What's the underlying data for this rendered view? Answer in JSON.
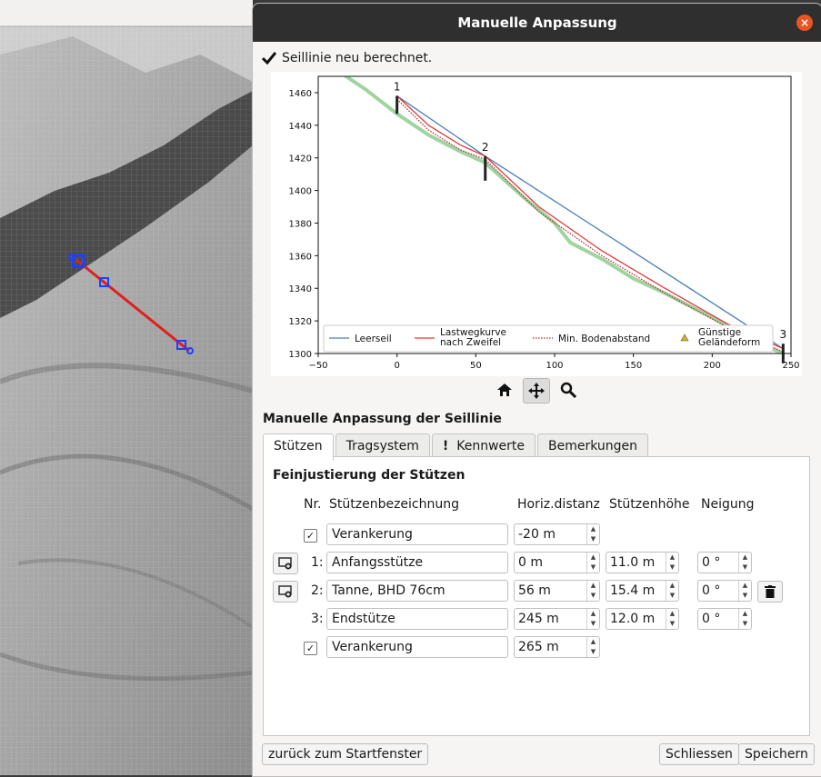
{
  "window": {
    "title": "Manuelle Anpassung",
    "close_label": "×"
  },
  "status": {
    "icon": "check-icon",
    "text": "Seillinie neu berechnet."
  },
  "chart_data": {
    "type": "line",
    "title": "",
    "xlabel": "",
    "ylabel": "",
    "xlim": [
      -50,
      250
    ],
    "ylim": [
      1300,
      1470
    ],
    "xticks": [
      -50,
      0,
      50,
      100,
      150,
      200,
      250
    ],
    "yticks": [
      1300,
      1320,
      1340,
      1360,
      1380,
      1400,
      1420,
      1440,
      1460
    ],
    "series": [
      {
        "name": "Leerseil",
        "color": "#4a7fb5",
        "x": [
          0,
          56,
          245
        ],
        "y": [
          1458,
          1421,
          1303
        ]
      },
      {
        "name": "Lastwegkurve nach Zweifel",
        "color": "#e03b3b",
        "x": [
          0,
          20,
          40,
          56,
          90,
          130,
          170,
          210,
          245
        ],
        "y": [
          1458,
          1440,
          1428,
          1421,
          1390,
          1363,
          1340,
          1318,
          1303
        ]
      },
      {
        "name": "Min. Bodenabstand",
        "color": "#b03030",
        "x": [
          0,
          20,
          40,
          56,
          90,
          130,
          170,
          210,
          245
        ],
        "y": [
          1456,
          1437,
          1425,
          1419,
          1387,
          1360,
          1337,
          1316,
          1301
        ]
      },
      {
        "name": "Terrain",
        "color": "#9fd39f",
        "x": [
          -40,
          -20,
          0,
          20,
          40,
          56,
          80,
          100,
          110,
          130,
          150,
          170,
          200,
          230,
          245
        ],
        "y": [
          1475,
          1462,
          1447,
          1434,
          1424,
          1417,
          1396,
          1380,
          1368,
          1358,
          1346,
          1337,
          1322,
          1306,
          1300
        ]
      }
    ],
    "supports": [
      {
        "label": "1",
        "x": 0,
        "top": 1458,
        "bottom": 1447
      },
      {
        "label": "2",
        "x": 56,
        "top": 1421,
        "bottom": 1406
      },
      {
        "label": "3",
        "x": 245,
        "top": 1306,
        "bottom": 1294
      }
    ],
    "legend": {
      "position": "bottom",
      "entries": [
        "Leerseil",
        "Lastwegkurve\nnach Zweifel",
        "Min. Bodenabstand",
        "Günstige\nGeländeform"
      ]
    },
    "grid": false
  },
  "toolbar": {
    "home": "home-icon",
    "pan": "pan-icon",
    "zoom": "zoom-icon"
  },
  "section_title": "Manuelle Anpassung der Seillinie",
  "tabs": [
    "Stützen",
    "Tragsystem",
    "Kennwerte",
    "Bemerkungen"
  ],
  "tab_kennwerte_prefix": "!",
  "panel": {
    "title": "Feinjustierung der Stützen",
    "headers": {
      "nr": "Nr.",
      "name": "Stützenbezeichnung",
      "dist": "Horiz.distanz",
      "height": "Stützenhöhe",
      "tilt": "Neigung"
    },
    "rows": [
      {
        "nr": "",
        "check": "✓",
        "name": "Verankerung",
        "dist": "-20 m"
      },
      {
        "nr": "1:",
        "name": "Anfangsstütze",
        "dist": "0 m",
        "height": "11.0 m",
        "tilt": "0 °"
      },
      {
        "nr": "2:",
        "name": "Tanne, BHD 76cm",
        "dist": "56 m",
        "height": "15.4 m",
        "tilt": "0 °"
      },
      {
        "nr": "3:",
        "name": "Endstütze",
        "dist": "245 m",
        "height": "12.0 m",
        "tilt": "0 °"
      },
      {
        "nr": "",
        "check": "✓",
        "name": "Verankerung",
        "dist": "265 m"
      }
    ]
  },
  "buttons": {
    "back": "zurück zum Startfenster",
    "close": "Schliessen",
    "save": "Speichern"
  }
}
